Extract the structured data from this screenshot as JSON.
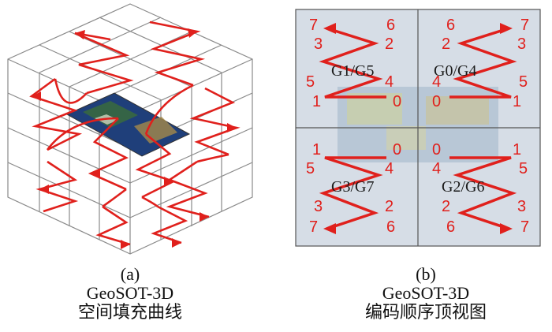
{
  "panel_a": {
    "letter": "(a)",
    "title": "GeoSOT-3D",
    "subtitle": "空间填充曲线"
  },
  "panel_b": {
    "letter": "(b)",
    "title": "GeoSOT-3D",
    "subtitle": "编码顺序顶视图",
    "quadrants": [
      {
        "label": "G1/G5",
        "numbers": [
          "7",
          "6",
          "3",
          "2",
          "5",
          "4",
          "1",
          "0"
        ]
      },
      {
        "label": "G0/G4",
        "numbers": [
          "6",
          "7",
          "2",
          "3",
          "4",
          "5",
          "0",
          "1"
        ]
      },
      {
        "label": "G3/G7",
        "numbers": [
          "1",
          "0",
          "5",
          "4",
          "3",
          "2",
          "7",
          "6"
        ]
      },
      {
        "label": "G2/G6",
        "numbers": [
          "0",
          "1",
          "4",
          "5",
          "2",
          "3",
          "6",
          "7"
        ]
      }
    ]
  },
  "colors": {
    "curve": "#e0201c",
    "grid_line": "#8a8a8a",
    "panel_b_bg": "#d6dde6"
  }
}
